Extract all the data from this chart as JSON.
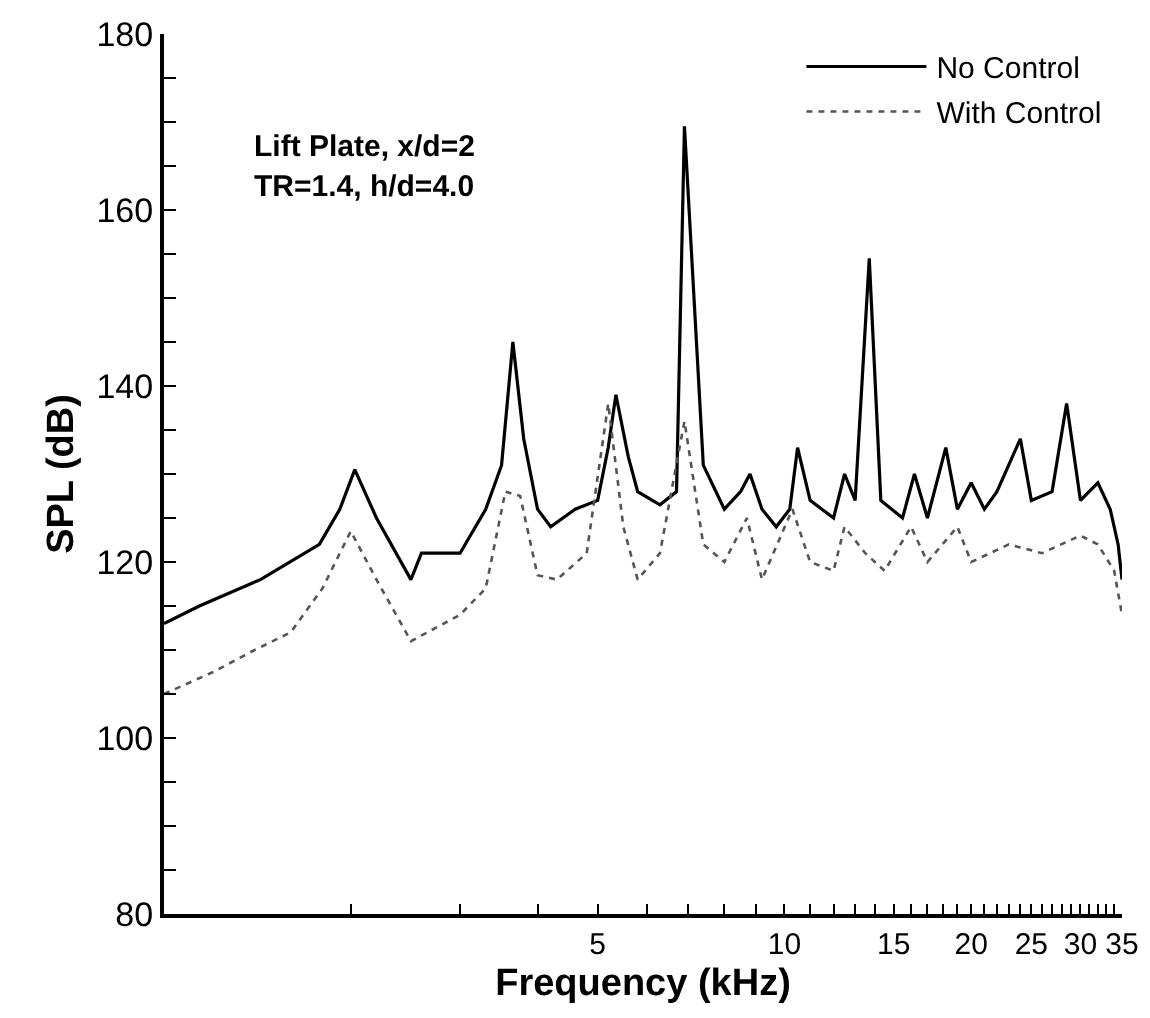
{
  "chart_data": {
    "type": "line",
    "xlabel": "Frequency (kHz)",
    "ylabel": "SPL (dB)",
    "log": "x",
    "xlim": [
      1,
      35
    ],
    "ylim": [
      80,
      180
    ],
    "xticks": [
      {
        "value": 2,
        "label": null
      },
      {
        "value": 3,
        "label": null
      },
      {
        "value": 4,
        "label": null
      },
      5,
      {
        "value": 6,
        "label": null
      },
      {
        "value": 7,
        "label": null
      },
      {
        "value": 8,
        "label": null
      },
      {
        "value": 9,
        "label": null
      },
      10,
      {
        "value": 11,
        "label": null
      },
      {
        "value": 12,
        "label": null
      },
      {
        "value": 13,
        "label": null
      },
      {
        "value": 14,
        "label": null
      },
      15,
      {
        "value": 16,
        "label": null
      },
      {
        "value": 17,
        "label": null
      },
      {
        "value": 18,
        "label": null
      },
      {
        "value": 19,
        "label": null
      },
      20,
      {
        "value": 21,
        "label": null
      },
      {
        "value": 22,
        "label": null
      },
      {
        "value": 23,
        "label": null
      },
      {
        "value": 24,
        "label": null
      },
      25,
      {
        "value": 26,
        "label": null
      },
      {
        "value": 27,
        "label": null
      },
      {
        "value": 28,
        "label": null
      },
      {
        "value": 29,
        "label": null
      },
      30,
      {
        "value": 31,
        "label": null
      },
      {
        "value": 32,
        "label": null
      },
      {
        "value": 33,
        "label": null
      },
      {
        "value": 34,
        "label": null
      },
      35
    ],
    "yticks": [
      80,
      {
        "value": 85,
        "label": null
      },
      {
        "value": 90,
        "label": null
      },
      {
        "value": 95,
        "label": null
      },
      100,
      {
        "value": 105,
        "label": null
      },
      {
        "value": 110,
        "label": null
      },
      {
        "value": 115,
        "label": null
      },
      120,
      {
        "value": 125,
        "label": null
      },
      {
        "value": 130,
        "label": null
      },
      {
        "value": 135,
        "label": null
      },
      140,
      {
        "value": 145,
        "label": null
      },
      {
        "value": 150,
        "label": null
      },
      {
        "value": 155,
        "label": null
      },
      160,
      {
        "value": 165,
        "label": null
      },
      {
        "value": 170,
        "label": null
      },
      {
        "value": 175,
        "label": null
      },
      180
    ],
    "grid": false,
    "legend": "top right",
    "marker": "none",
    "annotations": [
      "Lift Plate, x/d=2",
      "TR=1.4, h/d=4.0"
    ],
    "series": [
      {
        "name": "No Control",
        "color": "#000000",
        "line_style": "solid",
        "x": [
          1,
          1.14,
          1.43,
          1.78,
          1.92,
          2.03,
          2.2,
          2.5,
          2.6,
          3.0,
          3.3,
          3.5,
          3.65,
          3.8,
          4.0,
          4.2,
          4.6,
          5.0,
          5.2,
          5.35,
          5.6,
          5.8,
          6.3,
          6.7,
          6.9,
          7.4,
          8.0,
          8.5,
          8.8,
          9.2,
          9.7,
          10.2,
          10.5,
          11,
          12,
          12.5,
          13,
          13.7,
          14.3,
          15.5,
          16.2,
          17,
          18.2,
          19,
          20,
          21,
          22,
          24,
          25,
          27,
          28.5,
          30,
          32,
          33.5,
          34.5,
          35
        ],
        "values": [
          113,
          115,
          118,
          122,
          126,
          130.5,
          125,
          118,
          121,
          121,
          126,
          131,
          145,
          134,
          126,
          124,
          126,
          127,
          133,
          139,
          132,
          128,
          126.5,
          128,
          169.5,
          131,
          126,
          128,
          130,
          126,
          124,
          126,
          133,
          127,
          125,
          130,
          127,
          154.5,
          127,
          125,
          130,
          125,
          133,
          126,
          129,
          126,
          128,
          134,
          127,
          128,
          138,
          127,
          129,
          126,
          122,
          118
        ]
      },
      {
        "name": "With Control",
        "color": "#555555",
        "line_style": "dotted",
        "x": [
          1,
          1.2,
          1.4,
          1.6,
          1.8,
          2.0,
          2.2,
          2.5,
          3.0,
          3.3,
          3.55,
          3.75,
          4.0,
          4.3,
          4.8,
          5.2,
          5.5,
          5.8,
          6.3,
          6.9,
          7.4,
          8.0,
          8.7,
          9.2,
          10.3,
          11,
          12,
          12.5,
          13.5,
          14.5,
          16,
          17,
          19,
          20,
          23,
          26,
          30,
          32,
          34,
          35
        ],
        "values": [
          105,
          107.5,
          110,
          112,
          117,
          123.5,
          118,
          111,
          114,
          117,
          128,
          127.5,
          118.5,
          118,
          121,
          138,
          124,
          118,
          121,
          136,
          122,
          120,
          125,
          118,
          126,
          120,
          119,
          124,
          121,
          119,
          124,
          120,
          124,
          120,
          122,
          121,
          123,
          122,
          119,
          114
        ]
      }
    ]
  }
}
